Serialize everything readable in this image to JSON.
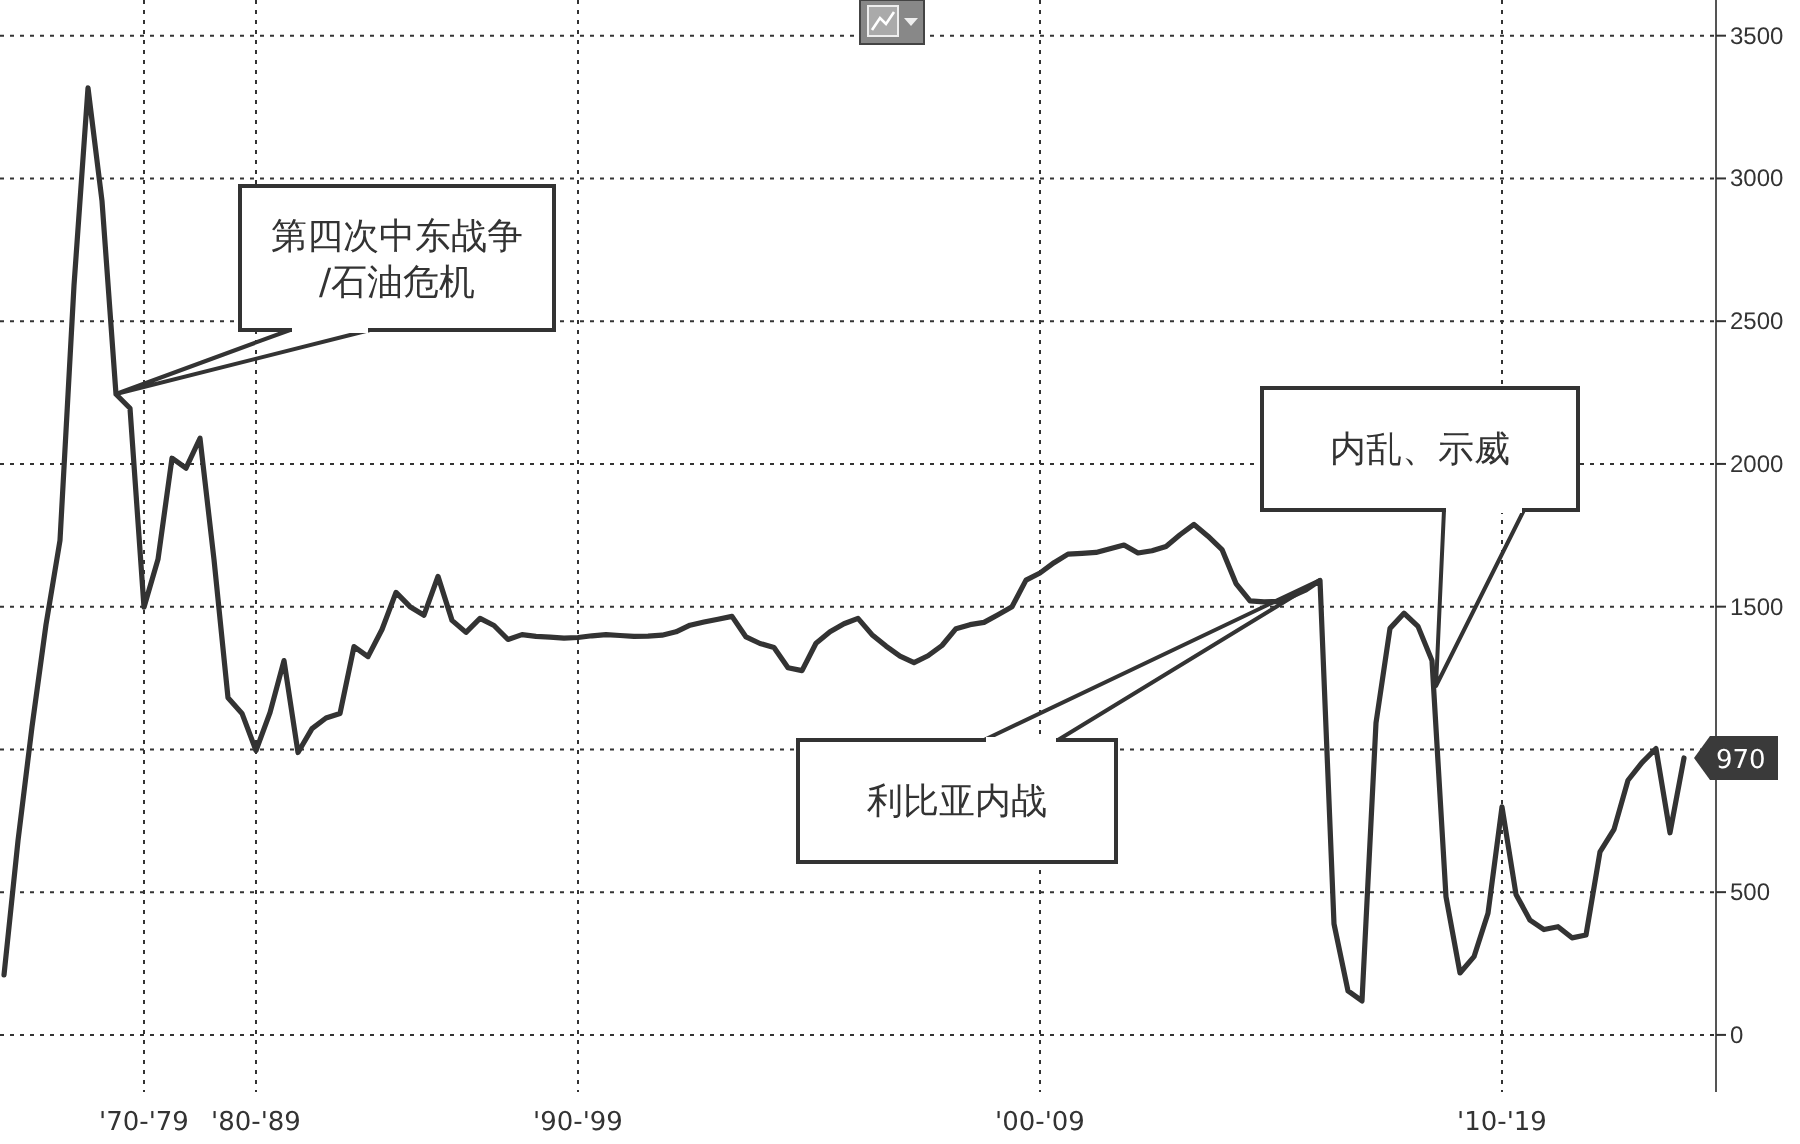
{
  "chart_data": {
    "type": "line",
    "categories": [
      null,
      null,
      null,
      null,
      null,
      null,
      null,
      null,
      null,
      null,
      "'70-'79",
      null,
      null,
      null,
      null,
      null,
      null,
      null,
      "'80-'89",
      null,
      null,
      null,
      null,
      null,
      null,
      null,
      null,
      null,
      null,
      null,
      null,
      null,
      null,
      null,
      null,
      null,
      null,
      null,
      null,
      null,
      null,
      "'90-'99",
      null,
      null,
      null,
      null,
      null,
      null,
      null,
      null,
      null,
      null,
      null,
      null,
      null,
      null,
      null,
      null,
      null,
      null,
      null,
      null,
      null,
      null,
      null,
      null,
      null,
      null,
      null,
      null,
      null,
      null,
      null,
      null,
      "'00-'09",
      null,
      null,
      null,
      null,
      null,
      null,
      null,
      null,
      null,
      null,
      null,
      null,
      null,
      null,
      null,
      null,
      null,
      null,
      null,
      null,
      null,
      null,
      null,
      null,
      null,
      null,
      null,
      null,
      null,
      null,
      null,
      null,
      "'10-'19",
      null,
      null,
      null,
      null,
      null,
      null,
      null,
      null,
      null,
      null,
      null,
      null,
      null
    ],
    "series": [
      {
        "color": "#333333",
        "values": [
          210,
          680,
          1079,
          1437,
          1732,
          2625,
          3317,
          2921,
          2244,
          2195,
          1498,
          1666,
          2020,
          1985,
          2090,
          1665,
          1181,
          1126,
          996,
          1129,
          1311,
          989,
          1073,
          1110,
          1126,
          1360,
          1325,
          1420,
          1550,
          1500,
          1470,
          1606,
          1452,
          1410,
          1459,
          1434,
          1385,
          1402,
          1396,
          1393,
          1390,
          1392,
          1398,
          1402,
          1399,
          1396,
          1397,
          1400,
          1412,
          1435,
          1446,
          1456,
          1466,
          1394,
          1371,
          1357,
          1286,
          1276,
          1372,
          1412,
          1440,
          1459,
          1402,
          1362,
          1327,
          1304,
          1328,
          1364,
          1423,
          1437,
          1445,
          1472,
          1500,
          1593,
          1618,
          1654,
          1684,
          1687,
          1690,
          1703,
          1716,
          1688,
          1696,
          1711,
          1752,
          1788,
          1747,
          1700,
          1581,
          1520,
          1517,
          1518,
          1537,
          1559,
          1592,
          389,
          154,
          119,
          1093,
          1424,
          1477,
          1431,
          1311,
          484,
          217,
          274,
          426,
          799,
          492,
          402,
          369,
          379,
          340,
          350,
          641,
          720,
          892,
          954,
          1003,
          708,
          970
        ],
        "value_labels": [
          null,
          null,
          null,
          null,
          null,
          null,
          null,
          null,
          null,
          null,
          null,
          null,
          null,
          null,
          null,
          null,
          null,
          null,
          null,
          null,
          null,
          null,
          null,
          null,
          null,
          null,
          null,
          null,
          null,
          null,
          null,
          null,
          null,
          null,
          null,
          null,
          null,
          null,
          null,
          null,
          null,
          null,
          null,
          null,
          null,
          null,
          null,
          null,
          null,
          null,
          null,
          null,
          null,
          null,
          null,
          null,
          null,
          null,
          null,
          null,
          null,
          null,
          null,
          null,
          null,
          null,
          null,
          null,
          null,
          null,
          null,
          null,
          null,
          null,
          null,
          null,
          null,
          null,
          null,
          null,
          null,
          null,
          null,
          null,
          null,
          null,
          null,
          null,
          null,
          null,
          null,
          null,
          null,
          null,
          null,
          null,
          null,
          null,
          null,
          null,
          null,
          null,
          null,
          null,
          null,
          null,
          null,
          null,
          null,
          null,
          null,
          null,
          null,
          null,
          null,
          null,
          null,
          null,
          null,
          null,
          "970"
        ]
      }
    ],
    "ylim": [
      -200,
      3625
    ],
    "yticks": [
      0,
      500,
      {
        "value": 1000,
        "label": null
      },
      1500,
      2000,
      2500,
      3000,
      3500
    ],
    "grid": true,
    "line_style": "solid",
    "annotations": [
      "第四次中东战争\n/石油危机",
      "利比亚内战",
      "内乱、示威"
    ]
  }
}
